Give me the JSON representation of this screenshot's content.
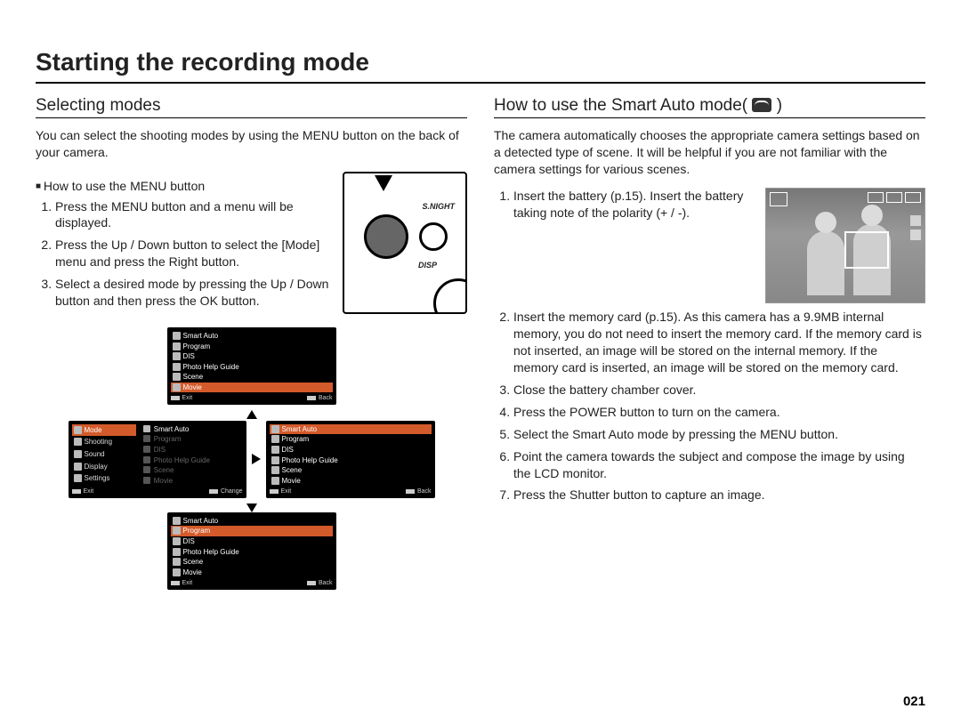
{
  "page": {
    "title": "Starting the recording mode",
    "number": "021"
  },
  "left": {
    "heading": "Selecting modes",
    "intro": "You can select the shooting modes by using the MENU button on the back of your camera.",
    "bullet": "How to use the MENU button",
    "steps": [
      "Press the MENU button and a menu will be displayed.",
      "Press the Up / Down button to select the [Mode] menu and press the Right button.",
      "Select a desired mode by pressing the Up / Down button and then press the OK button."
    ],
    "camera_labels": {
      "snight": "S.NIGHT",
      "disp": "DISP"
    },
    "menu": {
      "side_items": [
        "Mode",
        "Shooting",
        "Sound",
        "Display",
        "Settings"
      ],
      "right_items": [
        "Smart Auto",
        "Program",
        "DIS",
        "Photo Help Guide",
        "Scene",
        "Movie"
      ],
      "top_selected_index": 5,
      "mid_selected_index": 0,
      "mid_side_selected_index": 0,
      "bot_selected_index": 1,
      "foot_left": "Exit",
      "foot_right_back": "Back",
      "foot_right_change": "Change",
      "colors": {
        "card_bg": "#000000",
        "text": "#ffffff",
        "dim_text": "#777777",
        "selected_bg": "#d35a2a",
        "arrow": "#000000"
      }
    }
  },
  "right": {
    "heading_prefix": "How to use the Smart Auto mode( ",
    "heading_suffix": " )",
    "intro": "The camera automatically chooses the appropriate camera settings based on a detected type of scene. It will be helpful if you are not familiar with the camera settings for various scenes.",
    "steps": [
      "Insert the battery (p.15). Insert the battery taking note of the polarity (+ / -).",
      "Insert the memory card (p.15). As this camera has a 9.9MB internal memory, you do not need to insert the memory card. If the memory card is not inserted, an image will be stored on the internal memory. If the memory card is inserted, an image will be stored on the memory card.",
      "Close the battery chamber cover.",
      "Press the POWER button to turn on the camera.",
      "Select the Smart Auto mode by pressing the MENU button.",
      "Point the camera towards the subject and compose the image by using the LCD monitor.",
      "Press the Shutter button to capture an image."
    ]
  }
}
